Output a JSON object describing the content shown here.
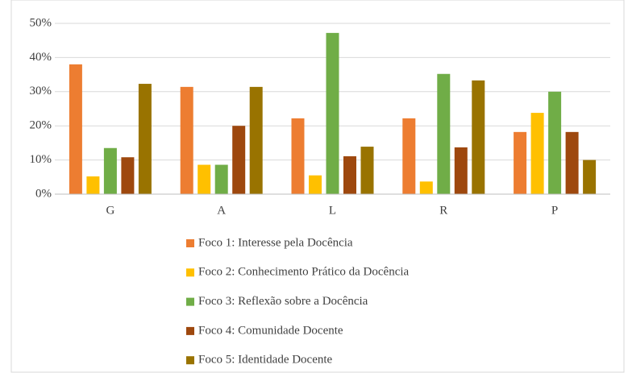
{
  "chart_data": {
    "type": "bar",
    "categories": [
      "G",
      "A",
      "L",
      "R",
      "P"
    ],
    "series": [
      {
        "name": "Foco 1: Interesse pela Docência",
        "color": "#ed7d31",
        "values": [
          38,
          31.4,
          22.2,
          22.2,
          18.2
        ]
      },
      {
        "name": "Foco 2: Conhecimento Prático da Docência",
        "color": "#ffc000",
        "values": [
          5.2,
          8.6,
          5.5,
          3.7,
          23.8
        ]
      },
      {
        "name": "Foco 3: Reflexão sobre a Docência",
        "color": "#70ad47",
        "values": [
          13.5,
          8.6,
          47.2,
          35.2,
          30
        ]
      },
      {
        "name": "Foco 4: Comunidade Docente",
        "color": "#9e480e",
        "values": [
          10.8,
          20,
          11.1,
          13.7,
          18.2
        ]
      },
      {
        "name": "Foco 5: Identidade Docente",
        "color": "#997300",
        "values": [
          32.3,
          31.4,
          13.9,
          33.3,
          10
        ]
      }
    ],
    "ylim": [
      0,
      50
    ],
    "yticks": [
      {
        "value": 0,
        "label": "0%"
      },
      {
        "value": 10,
        "label": "10%"
      },
      {
        "value": 20,
        "label": "20%"
      },
      {
        "value": 30,
        "label": "30%"
      },
      {
        "value": 40,
        "label": "40%"
      },
      {
        "value": 50,
        "label": "50%"
      }
    ],
    "grid": true,
    "legend": "bottom"
  }
}
